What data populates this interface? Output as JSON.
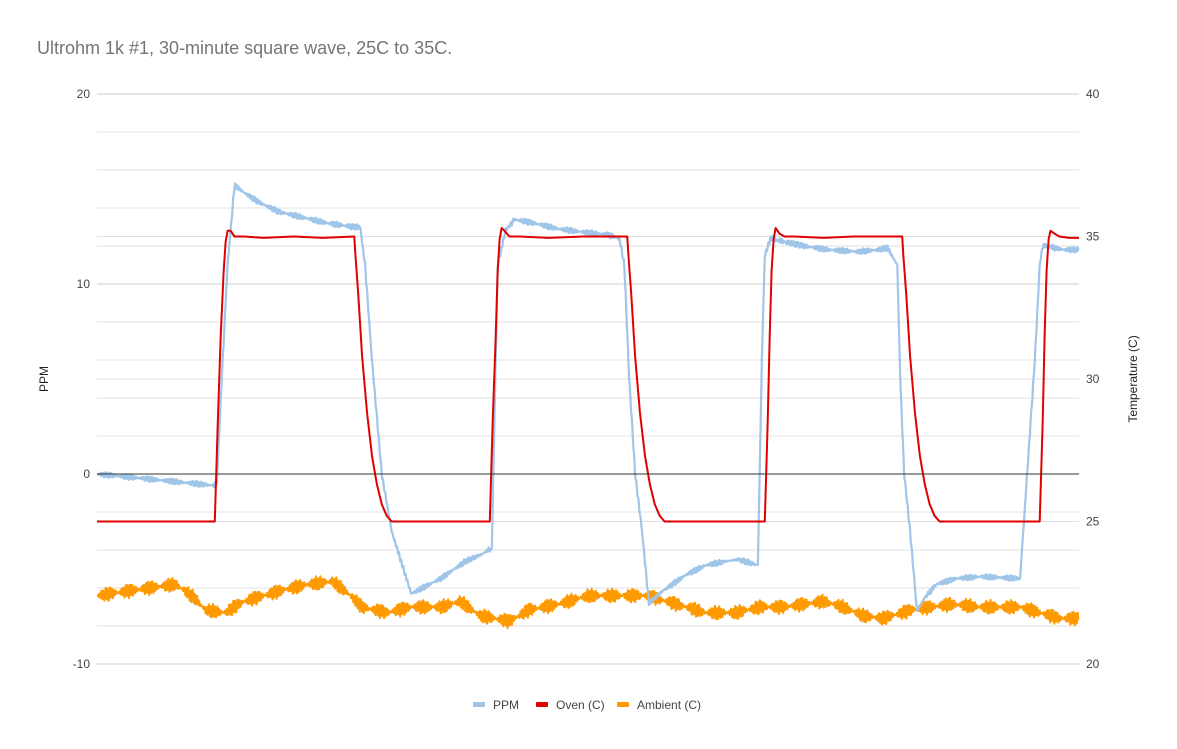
{
  "chart_data": {
    "type": "line",
    "title": "Ultrohm 1k #1, 30-minute square wave, 25C to 35C.",
    "ylabel": "PPM",
    "y2label": "Temperature (C)",
    "ylim": [
      -10,
      20
    ],
    "y2lim": [
      20,
      40
    ],
    "yticks": [
      "20",
      "10",
      "0",
      "-10"
    ],
    "y2ticks": [
      "40",
      "35",
      "30",
      "25",
      "20"
    ],
    "xlim": [
      0,
      1000
    ],
    "grid": true,
    "legend_position": "bottom",
    "series": [
      {
        "name": "PPM",
        "axis": "left",
        "color": "#9fc5e8",
        "x": [
          0,
          60,
          118,
          122,
          127,
          133,
          140,
          150,
          165,
          185,
          210,
          235,
          262,
          268,
          273,
          280,
          290,
          300,
          320,
          350,
          375,
          393,
          398,
          402,
          408,
          416,
          425,
          445,
          470,
          500,
          520,
          532,
          537,
          542,
          548,
          555,
          562,
          575,
          600,
          620,
          640,
          653,
          673,
          677,
          680,
          686,
          693,
          702,
          720,
          745,
          775,
          795,
          805,
          815,
          818,
          822,
          828,
          835,
          843,
          855,
          875,
          900,
          940,
          955,
          960,
          963,
          968,
          975,
          985,
          1000
        ],
        "y": [
          0.0,
          -0.3,
          -0.6,
          -0.5,
          5.0,
          11.0,
          15.2,
          14.8,
          14.3,
          13.8,
          13.5,
          13.2,
          13.0,
          13.0,
          11.0,
          6.0,
          0.0,
          -3.0,
          -6.3,
          -5.5,
          -4.6,
          -4.2,
          -4.0,
          -4.0,
          11.0,
          12.8,
          13.4,
          13.2,
          12.9,
          12.7,
          12.6,
          12.4,
          11.0,
          5.0,
          0.0,
          -3.0,
          -6.8,
          -6.2,
          -5.3,
          -4.8,
          -4.6,
          -4.5,
          -4.8,
          6.0,
          11.5,
          12.4,
          12.3,
          12.2,
          12.0,
          11.8,
          11.7,
          11.8,
          11.9,
          11.0,
          5.0,
          0.0,
          -3.0,
          -7.2,
          -6.5,
          -5.8,
          -5.5,
          -5.4,
          -5.5,
          6.0,
          11.0,
          12.0,
          12.0,
          11.9,
          11.8,
          11.8
        ]
      },
      {
        "name": "Oven (C)",
        "axis": "right",
        "color": "#e00000",
        "x": [
          0,
          120,
          123,
          126,
          129,
          131,
          133,
          136,
          140,
          150,
          170,
          200,
          230,
          262,
          263,
          266,
          270,
          275,
          280,
          285,
          290,
          295,
          300,
          400,
          403,
          406,
          408,
          410,
          412,
          415,
          420,
          430,
          460,
          495,
          540,
          541,
          544,
          548,
          553,
          558,
          563,
          568,
          573,
          578,
          680,
          683,
          685,
          687,
          689,
          691,
          695,
          700,
          710,
          740,
          770,
          820,
          821,
          824,
          828,
          833,
          838,
          843,
          848,
          853,
          858,
          960,
          963,
          965,
          967,
          969,
          971,
          975,
          980,
          990,
          1000
        ],
        "y": [
          25.0,
          25.0,
          28.5,
          31.5,
          33.8,
          34.8,
          35.2,
          35.2,
          35.0,
          35.0,
          34.95,
          35.0,
          34.95,
          35.0,
          34.4,
          33.0,
          30.8,
          28.8,
          27.3,
          26.3,
          25.6,
          25.2,
          25.0,
          25.0,
          28.5,
          31.5,
          33.8,
          34.9,
          35.3,
          35.2,
          35.0,
          35.0,
          34.95,
          35.0,
          35.0,
          34.4,
          33.0,
          30.8,
          28.8,
          27.3,
          26.3,
          25.6,
          25.2,
          25.0,
          25.0,
          28.5,
          31.5,
          33.8,
          34.9,
          35.3,
          35.1,
          35.0,
          35.0,
          34.95,
          35.0,
          35.0,
          34.4,
          33.0,
          30.8,
          28.8,
          27.3,
          26.3,
          25.6,
          25.2,
          25.0,
          25.0,
          28.5,
          31.5,
          33.8,
          34.9,
          35.2,
          35.1,
          35.0,
          34.95,
          34.95
        ]
      },
      {
        "name": "Ambient (C)",
        "axis": "right",
        "color": "#ff9900",
        "x": [
          0,
          40,
          80,
          100,
          110,
          130,
          150,
          190,
          215,
          240,
          255,
          270,
          295,
          320,
          350,
          370,
          390,
          420,
          440,
          470,
          500,
          530,
          560,
          580,
          620,
          650,
          675,
          700,
          740,
          760,
          780,
          800,
          830,
          870,
          900,
          940,
          980,
          1000
        ],
        "y": [
          22.4,
          22.6,
          22.8,
          22.3,
          21.9,
          21.8,
          22.2,
          22.6,
          22.8,
          22.9,
          22.5,
          22.0,
          21.8,
          22.0,
          22.0,
          22.2,
          21.7,
          21.5,
          21.9,
          22.1,
          22.4,
          22.4,
          22.4,
          22.2,
          21.8,
          21.8,
          22.0,
          22.0,
          22.2,
          22.0,
          21.7,
          21.6,
          21.9,
          22.1,
          22.0,
          22.0,
          21.6,
          21.6
        ]
      }
    ]
  }
}
